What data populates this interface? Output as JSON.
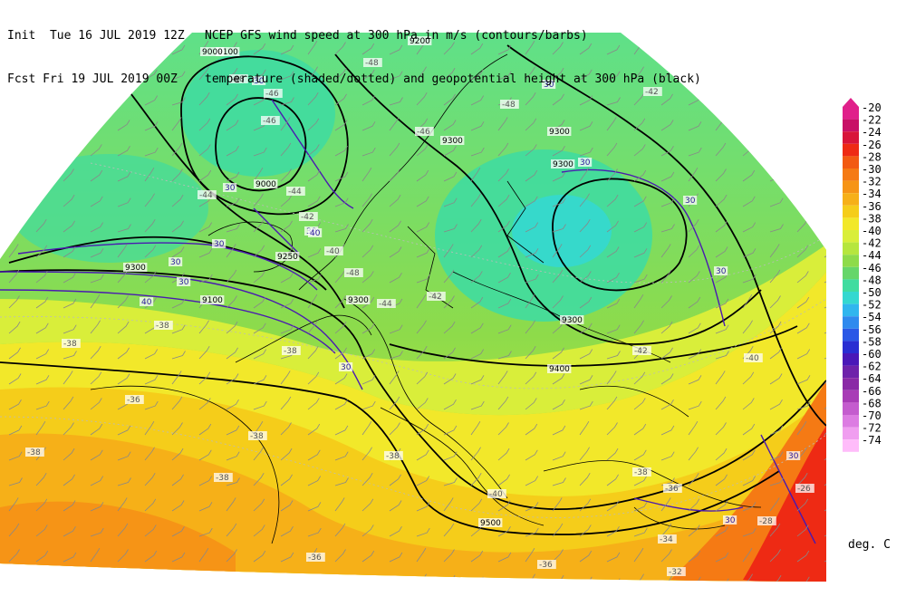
{
  "header": {
    "init_label": "Init",
    "init_time": "Tue 16 JUL 2019 12Z",
    "fcst_label": "Fcst",
    "fcst_time": "Fri 19 JUL 2019 00Z",
    "line1": "NCEP GFS wind speed at 300 hPa in m/s (contours/barbs)",
    "line2": "temperature (shaded/dotted) and geopotential height at 300 hPa (black)"
  },
  "colorbar": {
    "units": "deg. C",
    "levels": [
      "-20",
      "-22",
      "-24",
      "-26",
      "-28",
      "-30",
      "-32",
      "-34",
      "-36",
      "-38",
      "-40",
      "-42",
      "-44",
      "-46",
      "-48",
      "-50",
      "-52",
      "-54",
      "-56",
      "-58",
      "-60",
      "-62",
      "-64",
      "-66",
      "-68",
      "-70",
      "-72",
      "-74"
    ],
    "colors": [
      "#e0208a",
      "#c81066",
      "#d8143a",
      "#ee2a14",
      "#f25a12",
      "#f57a14",
      "#f69416",
      "#f6b018",
      "#f5cd1a",
      "#f2e82a",
      "#d9ee3a",
      "#b6e63e",
      "#8edb4a",
      "#66d66a",
      "#40dca0",
      "#34d8d0",
      "#30b6ee",
      "#2f8aee",
      "#2a58e6",
      "#2a2ed2",
      "#4a18b8",
      "#6e22aa",
      "#8a2aa6",
      "#a83cb6",
      "#c45cce",
      "#dc7ce2",
      "#f09ef0",
      "#ffbcfa"
    ]
  },
  "height_labels": [
    "9100",
    "9200",
    "9300",
    "9000",
    "9000",
    "9300",
    "9250",
    "9300",
    "9300",
    "9300",
    "9300",
    "9400",
    "9500",
    "9100"
  ],
  "temp_labels": [
    "-48",
    "-46",
    "-46",
    "-48",
    "-44",
    "-42",
    "-48",
    "-46",
    "-44",
    "-42",
    "-40",
    "-38",
    "-38",
    "-38",
    "-36",
    "-38",
    "-38",
    "-38",
    "-38",
    "-36",
    "-36",
    "-34",
    "-32",
    "-38",
    "-36",
    "-28",
    "-26",
    "-42",
    "-40",
    "-48",
    "-44",
    "-42",
    "-40"
  ],
  "wind_labels": [
    "30",
    "30",
    "30",
    "30",
    "30",
    "30",
    "30",
    "30",
    "30",
    "30",
    "30",
    "30",
    "30",
    "40",
    "40"
  ]
}
